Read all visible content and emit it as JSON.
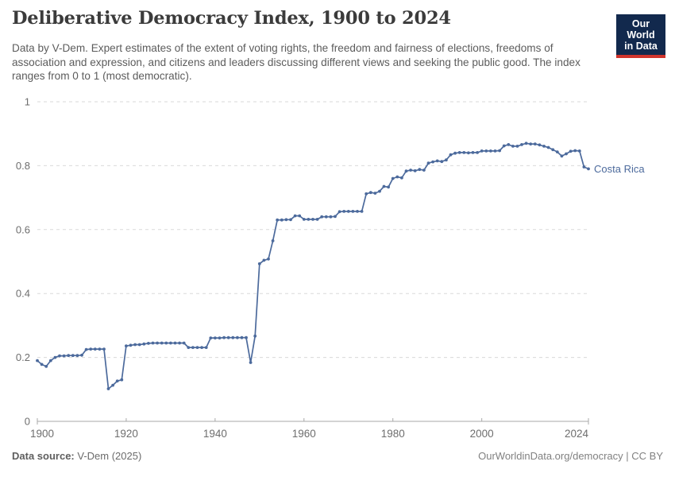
{
  "header": {
    "title": "Deliberative Democracy Index, 1900 to 2024",
    "subtitle": "Data by V-Dem. Expert estimates of the extent of voting rights, the freedom and fairness of elections, freedoms of association and expression, and citizens and leaders discussing different views and seeking the public good. The index ranges from 0 to 1 (most democratic).",
    "logo": {
      "line1": "Our World",
      "line2": "in Data"
    }
  },
  "chart_data": {
    "type": "line",
    "title": "Deliberative Democracy Index, 1900 to 2024",
    "xlabel": "",
    "ylabel": "",
    "xlim": [
      1900,
      2024
    ],
    "ylim": [
      0,
      1
    ],
    "grid": true,
    "gridline_color": "#dadada",
    "axis_color": "#a8a8a8",
    "tick_label_color": "#6e6e6e",
    "line_color": "#4C6A9C",
    "legend_position": "end-of-line label",
    "x_ticks": [
      1900,
      1920,
      1940,
      1960,
      1980,
      2000,
      2024
    ],
    "y_ticks": [
      0,
      0.2,
      0.4,
      0.6,
      0.8,
      1
    ],
    "y_tick_labels": [
      "0",
      "0.2",
      "0.4",
      "0.6",
      "0.8",
      "1"
    ],
    "series": [
      {
        "name": "Costa Rica",
        "x": [
          1900,
          1901,
          1902,
          1903,
          1904,
          1905,
          1906,
          1907,
          1908,
          1909,
          1910,
          1911,
          1912,
          1913,
          1914,
          1915,
          1916,
          1917,
          1918,
          1919,
          1920,
          1921,
          1922,
          1923,
          1924,
          1925,
          1926,
          1927,
          1928,
          1929,
          1930,
          1931,
          1932,
          1933,
          1934,
          1935,
          1936,
          1937,
          1938,
          1939,
          1940,
          1941,
          1942,
          1943,
          1944,
          1945,
          1946,
          1947,
          1948,
          1949,
          1950,
          1951,
          1952,
          1953,
          1954,
          1955,
          1956,
          1957,
          1958,
          1959,
          1960,
          1961,
          1962,
          1963,
          1964,
          1965,
          1966,
          1967,
          1968,
          1969,
          1970,
          1971,
          1972,
          1973,
          1974,
          1975,
          1976,
          1977,
          1978,
          1979,
          1980,
          1981,
          1982,
          1983,
          1984,
          1985,
          1986,
          1987,
          1988,
          1989,
          1990,
          1991,
          1992,
          1993,
          1994,
          1995,
          1996,
          1997,
          1998,
          1999,
          2000,
          2001,
          2002,
          2003,
          2004,
          2005,
          2006,
          2007,
          2008,
          2009,
          2010,
          2011,
          2012,
          2013,
          2014,
          2015,
          2016,
          2017,
          2018,
          2019,
          2020,
          2021,
          2022,
          2023,
          2024
        ],
        "values": [
          0.19,
          0.178,
          0.172,
          0.19,
          0.2,
          0.205,
          0.205,
          0.206,
          0.206,
          0.206,
          0.207,
          0.225,
          0.226,
          0.226,
          0.226,
          0.226,
          0.102,
          0.113,
          0.126,
          0.13,
          0.236,
          0.238,
          0.24,
          0.24,
          0.242,
          0.244,
          0.245,
          0.245,
          0.245,
          0.245,
          0.245,
          0.245,
          0.245,
          0.245,
          0.231,
          0.231,
          0.231,
          0.231,
          0.231,
          0.261,
          0.261,
          0.261,
          0.262,
          0.262,
          0.262,
          0.262,
          0.262,
          0.262,
          0.184,
          0.267,
          0.493,
          0.504,
          0.508,
          0.565,
          0.63,
          0.63,
          0.631,
          0.631,
          0.643,
          0.643,
          0.632,
          0.632,
          0.632,
          0.632,
          0.64,
          0.64,
          0.64,
          0.641,
          0.656,
          0.657,
          0.657,
          0.657,
          0.657,
          0.657,
          0.712,
          0.716,
          0.714,
          0.72,
          0.735,
          0.733,
          0.76,
          0.765,
          0.762,
          0.783,
          0.786,
          0.784,
          0.788,
          0.786,
          0.808,
          0.812,
          0.815,
          0.813,
          0.818,
          0.834,
          0.839,
          0.841,
          0.841,
          0.84,
          0.841,
          0.841,
          0.846,
          0.846,
          0.846,
          0.846,
          0.847,
          0.862,
          0.866,
          0.861,
          0.861,
          0.866,
          0.87,
          0.868,
          0.868,
          0.865,
          0.861,
          0.857,
          0.85,
          0.843,
          0.83,
          0.837,
          0.845,
          0.847,
          0.846,
          0.796,
          0.79
        ]
      }
    ]
  },
  "footer": {
    "source_label": "Data source:",
    "source_value": " V-Dem (2025)",
    "right_text": "OurWorldinData.org/democracy | CC BY"
  }
}
